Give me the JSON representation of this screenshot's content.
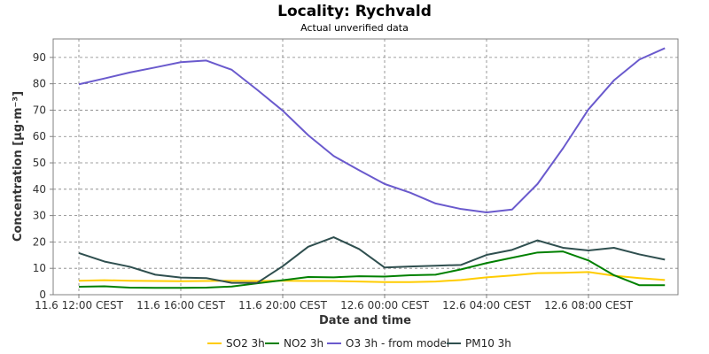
{
  "chart_data": {
    "type": "line",
    "title": "Locality: Rychvald",
    "subtitle": "Actual unverified data",
    "xlabel": "Date and time",
    "ylabel": "Concentration [µg·m⁻³]",
    "ylim": [
      0,
      97
    ],
    "yticks": [
      0,
      10,
      20,
      30,
      40,
      50,
      60,
      70,
      80,
      90
    ],
    "grid": true,
    "legend_position": "bottom",
    "x": [
      "11.6 12:00",
      "11.6 13:00",
      "11.6 14:00",
      "11.6 15:00",
      "11.6 16:00",
      "11.6 17:00",
      "11.6 18:00",
      "11.6 19:00",
      "11.6 20:00",
      "11.6 21:00",
      "11.6 22:00",
      "11.6 23:00",
      "12.6 00:00",
      "12.6 01:00",
      "12.6 02:00",
      "12.6 03:00",
      "12.6 04:00",
      "12.6 05:00",
      "12.6 06:00",
      "12.6 07:00",
      "12.6 08:00",
      "12.6 09:00",
      "12.6 10:00",
      "12.6 11:00"
    ],
    "xticks": [
      {
        "index": 0,
        "label": "11.6 12:00 CEST"
      },
      {
        "index": 4,
        "label": "11.6 16:00 CEST"
      },
      {
        "index": 8,
        "label": "11.6 20:00 CEST"
      },
      {
        "index": 12,
        "label": "12.6 00:00 CEST"
      },
      {
        "index": 16,
        "label": "12.6 04:00 CEST"
      },
      {
        "index": 20,
        "label": "12.6 08:00 CEST"
      }
    ],
    "series": [
      {
        "name": "SO2 3h",
        "color": "#FFCC00",
        "values": [
          5.3,
          5.5,
          5.3,
          5.2,
          5.1,
          5.2,
          5.3,
          5.2,
          5.3,
          5.2,
          5.2,
          5.0,
          4.8,
          4.8,
          5.0,
          5.6,
          6.6,
          7.3,
          8.2,
          8.3,
          8.6,
          7.2,
          6.3,
          5.6
        ]
      },
      {
        "name": "NO2 3h",
        "color": "#008000",
        "values": [
          3.0,
          3.2,
          2.7,
          2.6,
          2.6,
          2.7,
          3.1,
          4.3,
          5.5,
          6.7,
          6.6,
          7.0,
          6.9,
          7.4,
          7.6,
          9.6,
          12.0,
          14.0,
          16.0,
          16.4,
          13.0,
          7.4,
          3.6,
          3.6
        ]
      },
      {
        "name": "O3 3h - from model",
        "color": "#6A5ACD",
        "values": [
          79.8,
          82.0,
          84.3,
          86.2,
          88.2,
          88.8,
          85.3,
          77.7,
          69.8,
          60.5,
          52.6,
          47.2,
          42.0,
          38.7,
          34.6,
          32.5,
          31.2,
          32.3,
          42.0,
          55.5,
          70.3,
          81.3,
          89.2,
          93.5
        ]
      },
      {
        "name": "PM10 3h",
        "color": "#2F4F4F",
        "values": [
          15.8,
          12.6,
          10.6,
          7.6,
          6.5,
          6.3,
          4.5,
          4.5,
          10.8,
          18.2,
          21.8,
          17.3,
          10.3,
          10.7,
          11.0,
          11.3,
          15.1,
          17.0,
          20.6,
          17.8,
          16.8,
          17.8,
          15.3,
          13.3
        ]
      }
    ]
  }
}
